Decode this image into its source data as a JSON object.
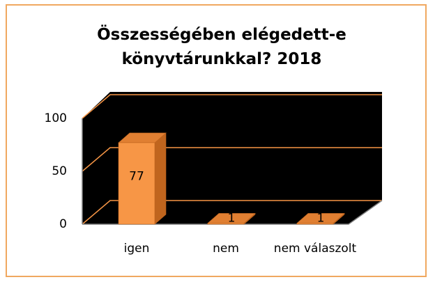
{
  "chart_data": {
    "type": "bar3d",
    "title": "Összességében elégedett-e könyvtárunkkal? 2018",
    "categories": [
      "igen",
      "nem",
      "nem válaszolt"
    ],
    "values": [
      77,
      1,
      1
    ],
    "color": "#f79646",
    "ylim": [
      0,
      100
    ],
    "yticks": [
      0,
      50,
      100
    ],
    "grid": true
  }
}
